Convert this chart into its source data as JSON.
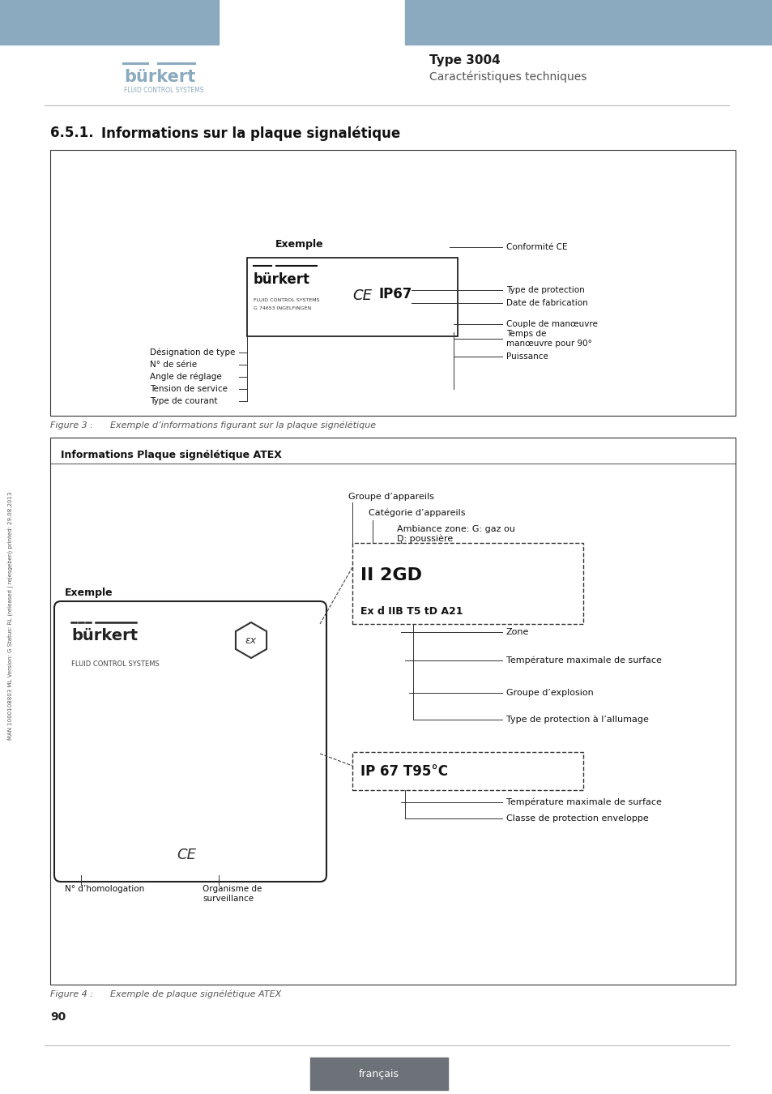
{
  "bg_color": "#ffffff",
  "header_blue": "#8baabf",
  "page_number": "90",
  "type_label": "Type 3004",
  "subtitle": "Caractéristiques techniques",
  "figure3_caption": "Figure 3 :      Exemple d’informations figurant sur la plaque signélétique",
  "figure4_caption": "Figure 4 :      Exemple de plaque signélétique ATEX",
  "footer_text": "français",
  "footer_bg": "#6d7278",
  "box1_right_labels": [
    "Conformité CE",
    "Type de protection",
    "Date de fabrication",
    "Couple de manœuvre",
    "Temps de\nmanœuvre pour 90°",
    "Puissance"
  ],
  "box1_left_labels": [
    "Désignation de type",
    "N° de série",
    "Angle de réglage",
    "Tension de service",
    "Type de courant"
  ],
  "box2_title": "Informations Plaque signélétique ATEX",
  "box2_top_labels": [
    "Groupe d’appareils",
    "Catégorie d’appareils",
    "Ambiance zone: G: gaz ou\nD: poussière"
  ],
  "box2_inner_text1": "II 2GD",
  "box2_inner_text2": "Ex d IIB T5 tD A21",
  "box2_right_labels_inner": [
    "Zone",
    "Température maximale de surface",
    "Groupe d’explosion",
    "Type de protection à l’allumage"
  ],
  "box2_inner_text3": "IP 67 T95°C",
  "box2_bottom_labels": [
    "Température maximale de surface",
    "Classe de protection enveloppe"
  ],
  "sidebar_text": "MAN 1000108803 ML Version: G Status: RL (released | rejesgeben) printed: 29.08.2013"
}
